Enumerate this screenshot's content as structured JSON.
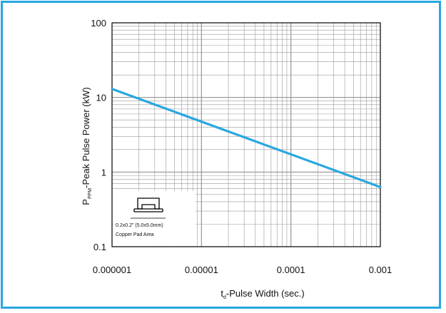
{
  "colors": {
    "border": "#29a7e1",
    "line": "#29a7e1",
    "grid": "#999999"
  },
  "chart_data": {
    "type": "line",
    "x_scale": "log",
    "y_scale": "log",
    "xlim": [
      1e-06,
      0.001
    ],
    "ylim": [
      0.1,
      100
    ],
    "x_ticks": [
      "0.000001",
      "0.00001",
      "0.0001",
      "0.001"
    ],
    "y_ticks": [
      "100",
      "10",
      "1",
      "0.1"
    ],
    "ylabel": {
      "main": "P",
      "sub": "PPM",
      "rest": "-Peak Pulse Power (kW)"
    },
    "xlabel": {
      "main": "t",
      "sub": "d",
      "rest": "-Pulse Width (sec.)"
    },
    "grid": true,
    "series": [
      {
        "x": [
          1e-06,
          0.001
        ],
        "y": [
          13,
          0.63
        ]
      }
    ],
    "annotation": {
      "line1": "0.2x0.2\" (5.0x5.0mm)",
      "line2": "Copper Pad Area"
    }
  }
}
